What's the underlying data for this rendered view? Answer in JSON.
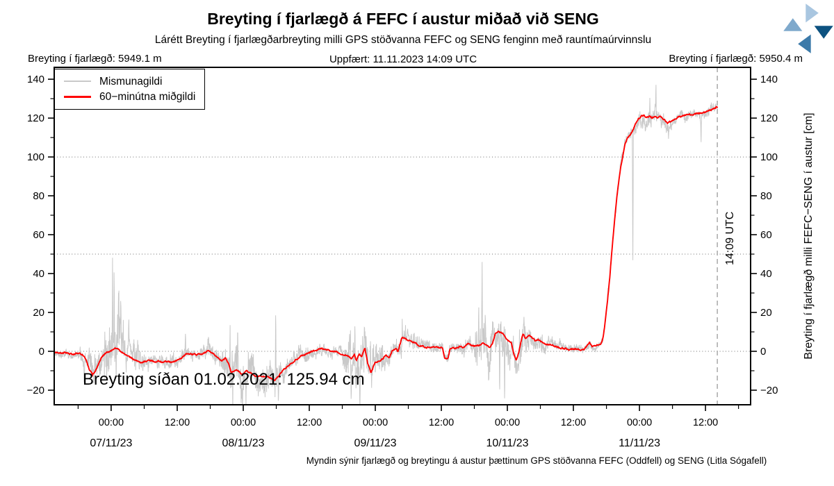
{
  "page": {
    "title": "Breyting í fjarlægð á FEFC í austur miðað við SENG",
    "subtitle": "Lárétt Breyting í fjarlægðarbreyting milli GPS stöðvanna FEFC og SENG fenginn með rauntímaúrvinnslu",
    "updated": "Uppfært: 11.11.2023 14:09 UTC",
    "distance_left": "Breyting í fjarlægð: 5949.1 m",
    "distance_right": "Breyting í fjarlægð: 5950.4 m",
    "annotation": "Breyting síðan 01.02.2021: 125.94 cm",
    "caption": "Myndin sýnir fjarlægð og breytingu á austur þættinum GPS stöðvanna FEFC (Oddfell) og SENG (Litla Sógafell)"
  },
  "logo": {
    "name": "vedurstofa-islands-pinwheel",
    "colors": [
      "#a9c6e0",
      "#7fa9cc",
      "#0d5280",
      "#3c7aa9"
    ]
  },
  "chart_data": {
    "type": "line",
    "title": "Breyting í fjarlægð á FEFC í austur miðað við SENG",
    "subtitle": "Lárétt Breyting í fjarlægðarbreyting milli GPS stöðvanna FEFC og SENG fenginn með rauntímaúrvinnslu",
    "x_axis": {
      "epoch_zero": "07/11/23 00:00 UTC",
      "range_hours": [
        -10.35,
        116.2
      ],
      "major_ticks": [
        {
          "t": 0,
          "label": "00:00"
        },
        {
          "t": 12,
          "label": "12:00"
        },
        {
          "t": 24,
          "label": "00:00"
        },
        {
          "t": 36,
          "label": "12:00"
        },
        {
          "t": 48,
          "label": "00:00"
        },
        {
          "t": 60,
          "label": "12:00"
        },
        {
          "t": 72,
          "label": "00:00"
        },
        {
          "t": 84,
          "label": "12:00"
        },
        {
          "t": 96,
          "label": "00:00"
        },
        {
          "t": 108,
          "label": "12:00"
        }
      ],
      "minor_ticks": [
        -6,
        6,
        18,
        30,
        42,
        54,
        66,
        78,
        90,
        102,
        114
      ],
      "date_ticks": [
        {
          "t": 0,
          "label": "07/11/23"
        },
        {
          "t": 24,
          "label": "08/11/23"
        },
        {
          "t": 48,
          "label": "09/11/23"
        },
        {
          "t": 72,
          "label": "10/11/23"
        },
        {
          "t": 96,
          "label": "11/11/23"
        }
      ]
    },
    "y_axis": {
      "range": [
        -27.5,
        146.1
      ],
      "ticks": [
        -20,
        0,
        20,
        40,
        60,
        80,
        100,
        120,
        140
      ],
      "minor_ticks": [
        -10,
        10,
        30,
        50,
        70,
        90,
        110,
        130
      ],
      "dotted_gridlines": [
        0,
        50,
        100
      ],
      "label_right": "Breyting í fjarlægð milli FEFC−SENG í austur [cm]",
      "unit": "cm"
    },
    "series": [
      {
        "name": "Mismunagildi",
        "color": "#c9c9c9",
        "role": "raw-differences"
      },
      {
        "name": "60−minútna miðgildi",
        "color": "#ff0000",
        "role": "60-min-median"
      }
    ],
    "event_line": {
      "t": 110.15,
      "label": "14:09 UTC"
    },
    "final_value_cm": 125.94,
    "median_keypoints": [
      [
        -10.35,
        -0.5
      ],
      [
        -9.5,
        -0.8
      ],
      [
        -9,
        -1
      ],
      [
        -8.5,
        -0.6
      ],
      [
        -8,
        -0.8
      ],
      [
        -7.5,
        -1.3
      ],
      [
        -7,
        -1.5
      ],
      [
        -6.4,
        -1
      ],
      [
        -5.8,
        -1.2
      ],
      [
        -5.2,
        -2
      ],
      [
        -4.6,
        -4
      ],
      [
        -4,
        -9
      ],
      [
        -3.4,
        -12
      ],
      [
        -2.9,
        -10.5
      ],
      [
        -2.4,
        -7
      ],
      [
        -1.8,
        -3.5
      ],
      [
        -1.2,
        -1.5
      ],
      [
        -0.6,
        -0.5
      ],
      [
        0,
        0.5
      ],
      [
        0.5,
        1.5
      ],
      [
        1,
        1.8
      ],
      [
        1.6,
        0.3
      ],
      [
        2.2,
        -0.8
      ],
      [
        3,
        -2.5
      ],
      [
        3.8,
        -3.5
      ],
      [
        4.6,
        -5
      ],
      [
        5.4,
        -6
      ],
      [
        6.2,
        -5.2
      ],
      [
        7,
        -4.6
      ],
      [
        7.8,
        -5.4
      ],
      [
        8.6,
        -5
      ],
      [
        9.4,
        -5.8
      ],
      [
        10.2,
        -5.2
      ],
      [
        11,
        -5.6
      ],
      [
        11.8,
        -4.8
      ],
      [
        12.6,
        -3.8
      ],
      [
        13.3,
        -2.2
      ],
      [
        14,
        -1.2
      ],
      [
        14.8,
        -1.6
      ],
      [
        15.6,
        -1.8
      ],
      [
        16.4,
        -1.2
      ],
      [
        17.1,
        -0.4
      ],
      [
        17.7,
        0
      ],
      [
        18.3,
        -1
      ],
      [
        18.9,
        -2
      ],
      [
        19.5,
        -3.5
      ],
      [
        20,
        -5
      ],
      [
        20.4,
        -4.2
      ],
      [
        20.8,
        -3.6
      ],
      [
        21.3,
        -6
      ],
      [
        21.8,
        -11
      ],
      [
        22.3,
        -10
      ],
      [
        22.7,
        -9.5
      ],
      [
        23.2,
        -10.5
      ],
      [
        23.7,
        -12
      ],
      [
        24.2,
        -11
      ],
      [
        24.6,
        -10
      ],
      [
        25,
        -10.5
      ],
      [
        25.5,
        -11.5
      ],
      [
        26,
        -12
      ],
      [
        26.5,
        -12.5
      ],
      [
        27.1,
        -12.2
      ],
      [
        27.8,
        -13
      ],
      [
        28.5,
        -13.5
      ],
      [
        29.2,
        -14
      ],
      [
        29.7,
        -14.5
      ],
      [
        30.3,
        -13
      ],
      [
        30.9,
        -11
      ],
      [
        31.8,
        -8.5
      ],
      [
        32.8,
        -6
      ],
      [
        33.8,
        -3.8
      ],
      [
        34.7,
        -2
      ],
      [
        35.4,
        -1.2
      ],
      [
        36,
        -0.5
      ],
      [
        36.7,
        0
      ],
      [
        37.3,
        0.5
      ],
      [
        38.1,
        1.5
      ],
      [
        38.7,
        1.2
      ],
      [
        39.2,
        1
      ],
      [
        39.9,
        0.5
      ],
      [
        40.5,
        0
      ],
      [
        41.2,
        -0.8
      ],
      [
        41.8,
        -1.5
      ],
      [
        42.4,
        -1.8
      ],
      [
        42.9,
        -2
      ],
      [
        43.6,
        -3.5
      ],
      [
        44.2,
        -2
      ],
      [
        44.6,
        -5
      ],
      [
        45.1,
        -1.5
      ],
      [
        45.5,
        -2.5
      ],
      [
        46.1,
        1.5
      ],
      [
        46.6,
        -6
      ],
      [
        47.2,
        -11
      ],
      [
        47.6,
        -8
      ],
      [
        48,
        -5.5
      ],
      [
        48.8,
        -4.5
      ],
      [
        49.3,
        -4
      ],
      [
        49.9,
        -2
      ],
      [
        50.6,
        -3.5
      ],
      [
        51.1,
        0.5
      ],
      [
        51.8,
        1.5
      ],
      [
        52.1,
        0
      ],
      [
        52.8,
        6.5
      ],
      [
        53.3,
        7
      ],
      [
        53.7,
        6
      ],
      [
        54.3,
        5.5
      ],
      [
        54.8,
        5
      ],
      [
        55.6,
        3.5
      ],
      [
        56.8,
        2.5
      ],
      [
        58.1,
        2
      ],
      [
        59.3,
        1.8
      ],
      [
        60.2,
        1.8
      ],
      [
        60.6,
        -3.5
      ],
      [
        61.2,
        -4
      ],
      [
        61.6,
        1.5
      ],
      [
        62.5,
        1.5
      ],
      [
        63.3,
        2.5
      ],
      [
        64.2,
        2
      ],
      [
        64.9,
        4
      ],
      [
        65.6,
        2.5
      ],
      [
        66.9,
        3
      ],
      [
        67.5,
        4.5
      ],
      [
        68.2,
        3
      ],
      [
        68.8,
        2
      ],
      [
        69.3,
        3.5
      ],
      [
        69.8,
        9
      ],
      [
        70.5,
        10
      ],
      [
        71.2,
        9
      ],
      [
        72,
        6
      ],
      [
        72.7,
        4.5
      ],
      [
        73.1,
        -1
      ],
      [
        73.6,
        -4.3
      ],
      [
        74.1,
        0
      ],
      [
        74.8,
        9
      ],
      [
        75.3,
        6.5
      ],
      [
        75.9,
        8.5
      ],
      [
        76.5,
        7
      ],
      [
        77.1,
        5.5
      ],
      [
        77.7,
        6
      ],
      [
        78.4,
        4.5
      ],
      [
        79.6,
        3.5
      ],
      [
        80.8,
        2.5
      ],
      [
        82.1,
        1.5
      ],
      [
        83.4,
        1
      ],
      [
        84.6,
        1
      ],
      [
        85.9,
        1
      ],
      [
        86.9,
        4.5
      ],
      [
        87.4,
        2.5
      ],
      [
        88.2,
        2.8
      ],
      [
        88.9,
        3.5
      ],
      [
        89.2,
        5
      ],
      [
        89.5,
        9
      ],
      [
        89.8,
        16
      ],
      [
        90.2,
        26
      ],
      [
        90.6,
        38
      ],
      [
        91,
        52
      ],
      [
        91.5,
        68
      ],
      [
        92,
        82
      ],
      [
        92.5,
        93
      ],
      [
        93,
        101
      ],
      [
        93.4,
        106.5
      ],
      [
        93.8,
        109.5
      ],
      [
        94.3,
        111.5
      ],
      [
        94.8,
        114
      ],
      [
        95.3,
        117
      ],
      [
        95.8,
        119.5
      ],
      [
        96.3,
        121
      ],
      [
        96.8,
        121.5
      ],
      [
        97.3,
        120.5
      ],
      [
        97.8,
        121
      ],
      [
        98.3,
        120
      ],
      [
        98.8,
        121
      ],
      [
        99.3,
        120.5
      ],
      [
        99.9,
        120.5
      ],
      [
        100.5,
        119.5
      ],
      [
        101.1,
        117.5
      ],
      [
        101.8,
        118
      ],
      [
        102.4,
        119.5
      ],
      [
        103.1,
        120.5
      ],
      [
        104.3,
        121.5
      ],
      [
        105.6,
        122
      ],
      [
        106.9,
        122.5
      ],
      [
        108.1,
        123
      ],
      [
        109,
        124
      ],
      [
        109.6,
        125
      ],
      [
        110.15,
        125.94
      ]
    ],
    "noise_segments": [
      [
        -10.35,
        -6,
        2.2
      ],
      [
        -6,
        -4.2,
        4
      ],
      [
        -4.2,
        -1.4,
        8
      ],
      [
        -1.4,
        2.6,
        13
      ],
      [
        2.6,
        6,
        7
      ],
      [
        6,
        12,
        4
      ],
      [
        12,
        16,
        3
      ],
      [
        16,
        20,
        4.5
      ],
      [
        20,
        26,
        10
      ],
      [
        26,
        31,
        8
      ],
      [
        31,
        36,
        4.5
      ],
      [
        36,
        42,
        3
      ],
      [
        42,
        46.5,
        11
      ],
      [
        46.5,
        49.5,
        8
      ],
      [
        49.5,
        52,
        4.5
      ],
      [
        52,
        56,
        5
      ],
      [
        56,
        60,
        3
      ],
      [
        60,
        64,
        3
      ],
      [
        64,
        66,
        4
      ],
      [
        66,
        69.5,
        10
      ],
      [
        69.5,
        72.5,
        9
      ],
      [
        72.5,
        76,
        7
      ],
      [
        76,
        79,
        5
      ],
      [
        79,
        82,
        3.5
      ],
      [
        82,
        89,
        2.2
      ],
      [
        89,
        94.5,
        2.8
      ],
      [
        94.5,
        101,
        5
      ],
      [
        101,
        110.15,
        2.6
      ]
    ],
    "noise_spikes": [
      [
        -4.9,
        -12
      ],
      [
        -3.1,
        -10
      ],
      [
        0.25,
        52
      ],
      [
        0.55,
        36
      ],
      [
        0.9,
        -16
      ],
      [
        1.35,
        28
      ],
      [
        1.75,
        22
      ],
      [
        2.1,
        -13
      ],
      [
        3.2,
        18
      ],
      [
        13.5,
        14
      ],
      [
        21.6,
        30
      ],
      [
        22.1,
        -18
      ],
      [
        23,
        22
      ],
      [
        24.5,
        -16
      ],
      [
        29.9,
        40
      ],
      [
        30.4,
        -14
      ],
      [
        43.6,
        -24
      ],
      [
        44.3,
        20
      ],
      [
        45.2,
        -23
      ],
      [
        47.1,
        16
      ],
      [
        48,
        -15
      ],
      [
        52.9,
        12
      ],
      [
        66.8,
        22
      ],
      [
        67.4,
        40
      ],
      [
        68,
        26
      ],
      [
        70.6,
        -36
      ],
      [
        71.5,
        -42
      ],
      [
        74.2,
        16
      ],
      [
        75,
        13
      ],
      [
        94.8,
        -70
      ],
      [
        97.9,
        12
      ],
      [
        99,
        15
      ],
      [
        101.3,
        -8
      ],
      [
        107.2,
        -13
      ]
    ]
  }
}
